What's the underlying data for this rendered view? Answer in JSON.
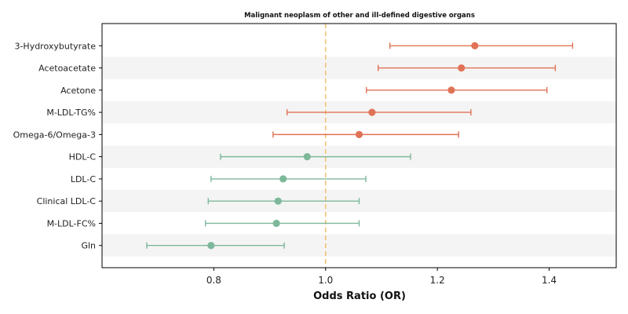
{
  "colors": {
    "positive": "#E07356",
    "negative": "#7DB89B",
    "reference_line": "#F5C27A",
    "band": "#F4F4F4",
    "axis": "#000000"
  },
  "chart_data": {
    "type": "forest",
    "title": "Malignant neoplasm of other and ill-defined digestive organs",
    "xlabel": "Odds Ratio (OR)",
    "ylabel": "",
    "xlim": [
      0.6,
      1.52
    ],
    "xticks": [
      0.8,
      1.0,
      1.2,
      1.4
    ],
    "xtick_labels": [
      "0.8",
      "1.0",
      "1.2",
      "1.4"
    ],
    "reference_value": 1.0,
    "grid": false,
    "alternating_bands": true,
    "rows": [
      {
        "label": "3-Hydroxybutyrate",
        "or": 1.267,
        "lower": 1.115,
        "upper": 1.442
      },
      {
        "label": "Acetoacetate",
        "or": 1.243,
        "lower": 1.094,
        "upper": 1.411
      },
      {
        "label": "Acetone",
        "or": 1.225,
        "lower": 1.073,
        "upper": 1.396
      },
      {
        "label": "M-LDL-TG%",
        "or": 1.083,
        "lower": 0.931,
        "upper": 1.26
      },
      {
        "label": "Omega-6/Omega-3",
        "or": 1.06,
        "lower": 0.906,
        "upper": 1.238
      },
      {
        "label": "HDL-C",
        "or": 0.967,
        "lower": 0.812,
        "upper": 1.152
      },
      {
        "label": "LDL-C",
        "or": 0.924,
        "lower": 0.795,
        "upper": 1.072
      },
      {
        "label": "Clinical LDL-C",
        "or": 0.915,
        "lower": 0.79,
        "upper": 1.06
      },
      {
        "label": "M-LDL-FC%",
        "or": 0.912,
        "lower": 0.785,
        "upper": 1.06
      },
      {
        "label": "Gln",
        "or": 0.795,
        "lower": 0.68,
        "upper": 0.926
      }
    ]
  }
}
